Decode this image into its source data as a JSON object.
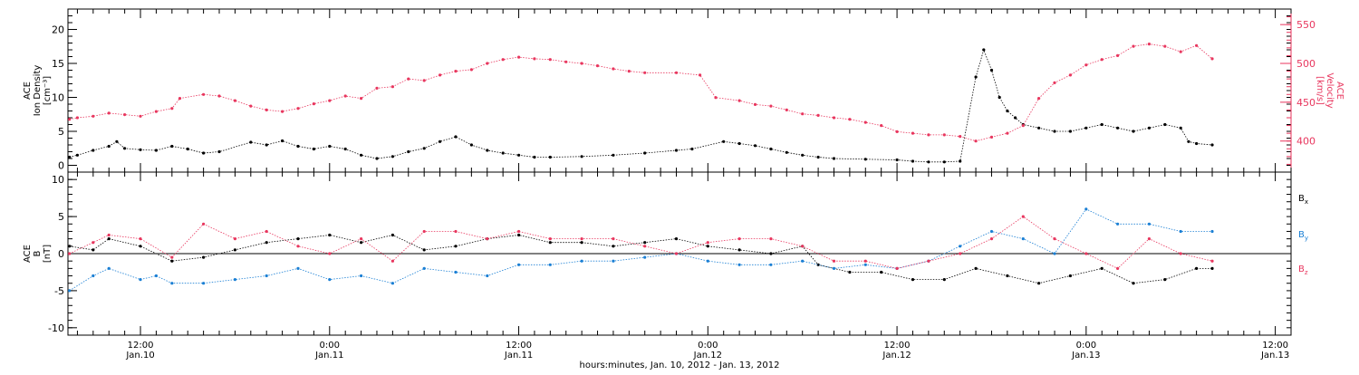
{
  "title": "",
  "x_axis": {
    "label": "hours:minutes, Jan. 10, 2012 - Jan. 13, 2012",
    "ticks": [
      {
        "hours": 12,
        "time": "12:00",
        "date": "Jan.10"
      },
      {
        "hours": 24,
        "time": "0:00",
        "date": "Jan.11"
      },
      {
        "hours": 36,
        "time": "12:00",
        "date": "Jan.11"
      },
      {
        "hours": 48,
        "time": "0:00",
        "date": "Jan.12"
      },
      {
        "hours": 60,
        "time": "12:00",
        "date": "Jan.12"
      },
      {
        "hours": 72,
        "time": "0:00",
        "date": "Jan.13"
      },
      {
        "hours": 84,
        "time": "12:00",
        "date": "Jan.13"
      }
    ]
  },
  "chart_data": [
    {
      "type": "scatter",
      "panel": "top",
      "x_unit": "hours since Jan 10 2012 00:00",
      "xlim": [
        7.4,
        85
      ],
      "left_axis": {
        "label_lines": [
          "ACE",
          "Ion Density",
          "[cm⁻³]"
        ],
        "ylim": [
          -1,
          23
        ],
        "ticks": [
          0,
          5,
          10,
          15,
          20
        ]
      },
      "right_axis": {
        "label_lines": [
          "ACE",
          "Velocity",
          "[km/s]"
        ],
        "ylim": [
          360,
          570
        ],
        "ticks": [
          400,
          450,
          500,
          550
        ],
        "color": "#e8365e"
      },
      "series": [
        {
          "name": "",
          "axis": "left",
          "color": "#000000",
          "points": [
            [
              7.5,
              1.2
            ],
            [
              8,
              1.5
            ],
            [
              9,
              2.2
            ],
            [
              10,
              2.8
            ],
            [
              10.5,
              3.5
            ],
            [
              11,
              2.5
            ],
            [
              12,
              2.3
            ],
            [
              13,
              2.2
            ],
            [
              14,
              2.8
            ],
            [
              15,
              2.4
            ],
            [
              16,
              1.8
            ],
            [
              17,
              2.0
            ],
            [
              19,
              3.4
            ],
            [
              20,
              3.0
            ],
            [
              21,
              3.6
            ],
            [
              22,
              2.8
            ],
            [
              23,
              2.4
            ],
            [
              24,
              2.8
            ],
            [
              25,
              2.4
            ],
            [
              26,
              1.5
            ],
            [
              27,
              1.0
            ],
            [
              28,
              1.3
            ],
            [
              29,
              2.0
            ],
            [
              30,
              2.5
            ],
            [
              31,
              3.5
            ],
            [
              32,
              4.2
            ],
            [
              33,
              3.0
            ],
            [
              34,
              2.2
            ],
            [
              35,
              1.8
            ],
            [
              36,
              1.5
            ],
            [
              37,
              1.2
            ],
            [
              38,
              1.2
            ],
            [
              40,
              1.3
            ],
            [
              42,
              1.5
            ],
            [
              44,
              1.8
            ],
            [
              46,
              2.2
            ],
            [
              47,
              2.4
            ],
            [
              49,
              3.5
            ],
            [
              50,
              3.2
            ],
            [
              51,
              2.9
            ],
            [
              52,
              2.4
            ],
            [
              53,
              1.9
            ],
            [
              54,
              1.5
            ],
            [
              55,
              1.2
            ],
            [
              56,
              1.0
            ],
            [
              58,
              0.9
            ],
            [
              60,
              0.8
            ],
            [
              61,
              0.6
            ],
            [
              62,
              0.5
            ],
            [
              63,
              0.5
            ],
            [
              64,
              0.6
            ],
            [
              65,
              13
            ],
            [
              65.5,
              17
            ],
            [
              66,
              14
            ],
            [
              66.5,
              10
            ],
            [
              67,
              8
            ],
            [
              67.5,
              7
            ],
            [
              68,
              6
            ],
            [
              69,
              5.5
            ],
            [
              70,
              5
            ],
            [
              71,
              5
            ],
            [
              72,
              5.5
            ],
            [
              73,
              6
            ],
            [
              74,
              5.5
            ],
            [
              75,
              5
            ],
            [
              76,
              5.5
            ],
            [
              77,
              6
            ],
            [
              78,
              5.5
            ],
            [
              78.5,
              3.5
            ],
            [
              79,
              3.2
            ],
            [
              80,
              3
            ]
          ]
        },
        {
          "name": "",
          "axis": "right",
          "color": "#e8365e",
          "points": [
            [
              7.5,
              428
            ],
            [
              8,
              430
            ],
            [
              9,
              432
            ],
            [
              10,
              436
            ],
            [
              11,
              434
            ],
            [
              12,
              432
            ],
            [
              13,
              438
            ],
            [
              14,
              442
            ],
            [
              14.5,
              455
            ],
            [
              16,
              460
            ],
            [
              17,
              458
            ],
            [
              18,
              452
            ],
            [
              19,
              445
            ],
            [
              20,
              440
            ],
            [
              21,
              438
            ],
            [
              22,
              442
            ],
            [
              23,
              448
            ],
            [
              24,
              452
            ],
            [
              25,
              458
            ],
            [
              26,
              455
            ],
            [
              27,
              468
            ],
            [
              28,
              470
            ],
            [
              29,
              480
            ],
            [
              30,
              478
            ],
            [
              31,
              485
            ],
            [
              32,
              490
            ],
            [
              33,
              492
            ],
            [
              34,
              500
            ],
            [
              35,
              505
            ],
            [
              36,
              508
            ],
            [
              37,
              506
            ],
            [
              38,
              505
            ],
            [
              39,
              502
            ],
            [
              40,
              500
            ],
            [
              41,
              497
            ],
            [
              42,
              493
            ],
            [
              43,
              490
            ],
            [
              44,
              488
            ],
            [
              46,
              488
            ],
            [
              47.5,
              485
            ],
            [
              48.5,
              456
            ],
            [
              50,
              452
            ],
            [
              51,
              447
            ],
            [
              52,
              445
            ],
            [
              53,
              440
            ],
            [
              54,
              435
            ],
            [
              55,
              433
            ],
            [
              56,
              430
            ],
            [
              57,
              428
            ],
            [
              58,
              424
            ],
            [
              59,
              420
            ],
            [
              60,
              412
            ],
            [
              61,
              410
            ],
            [
              62,
              408
            ],
            [
              63,
              408
            ],
            [
              64,
              406
            ],
            [
              65,
              400
            ],
            [
              66,
              405
            ],
            [
              67,
              410
            ],
            [
              68,
              420
            ],
            [
              69,
              455
            ],
            [
              70,
              475
            ],
            [
              71,
              485
            ],
            [
              72,
              498
            ],
            [
              73,
              505
            ],
            [
              74,
              510
            ],
            [
              75,
              522
            ],
            [
              76,
              525
            ],
            [
              77,
              522
            ],
            [
              78,
              515
            ],
            [
              79,
              523
            ],
            [
              80,
              506
            ]
          ]
        }
      ]
    },
    {
      "type": "scatter",
      "panel": "bottom",
      "x_unit": "hours since Jan 10 2012 00:00",
      "xlim": [
        7.4,
        85
      ],
      "left_axis": {
        "label_lines": [
          "ACE",
          "B",
          "[nT]"
        ],
        "ylim": [
          -11,
          11
        ],
        "ticks": [
          -10,
          -5,
          0,
          5,
          10
        ]
      },
      "series": [
        {
          "name": "Bx",
          "color": "#000000",
          "points": [
            [
              7.5,
              1
            ],
            [
              9,
              0.5
            ],
            [
              10,
              2
            ],
            [
              12,
              1
            ],
            [
              14,
              -1
            ],
            [
              16,
              -0.5
            ],
            [
              18,
              0.5
            ],
            [
              20,
              1.5
            ],
            [
              22,
              2
            ],
            [
              24,
              2.5
            ],
            [
              26,
              1.5
            ],
            [
              28,
              2.5
            ],
            [
              30,
              0.5
            ],
            [
              32,
              1
            ],
            [
              34,
              2
            ],
            [
              36,
              2.5
            ],
            [
              38,
              1.5
            ],
            [
              40,
              1.5
            ],
            [
              42,
              1
            ],
            [
              44,
              1.5
            ],
            [
              46,
              2
            ],
            [
              48,
              1
            ],
            [
              50,
              0.5
            ],
            [
              52,
              0
            ],
            [
              54,
              1
            ],
            [
              55,
              -1.5
            ],
            [
              57,
              -2.5
            ],
            [
              59,
              -2.5
            ],
            [
              61,
              -3.5
            ],
            [
              63,
              -3.5
            ],
            [
              65,
              -2
            ],
            [
              67,
              -3
            ],
            [
              69,
              -4
            ],
            [
              71,
              -3
            ],
            [
              73,
              -2
            ],
            [
              75,
              -4
            ],
            [
              77,
              -3.5
            ],
            [
              79,
              -2
            ],
            [
              80,
              -2
            ]
          ]
        },
        {
          "name": "By",
          "color": "#1a7fd4",
          "points": [
            [
              7.5,
              -5
            ],
            [
              9,
              -3
            ],
            [
              10,
              -2
            ],
            [
              12,
              -3.5
            ],
            [
              13,
              -3
            ],
            [
              14,
              -4
            ],
            [
              16,
              -4
            ],
            [
              18,
              -3.5
            ],
            [
              20,
              -3
            ],
            [
              22,
              -2
            ],
            [
              24,
              -3.5
            ],
            [
              26,
              -3
            ],
            [
              28,
              -4
            ],
            [
              30,
              -2
            ],
            [
              32,
              -2.5
            ],
            [
              34,
              -3
            ],
            [
              36,
              -1.5
            ],
            [
              38,
              -1.5
            ],
            [
              40,
              -1
            ],
            [
              42,
              -1
            ],
            [
              44,
              -0.5
            ],
            [
              46,
              0
            ],
            [
              48,
              -1
            ],
            [
              50,
              -1.5
            ],
            [
              52,
              -1.5
            ],
            [
              54,
              -1
            ],
            [
              56,
              -2
            ],
            [
              58,
              -1.5
            ],
            [
              60,
              -2
            ],
            [
              62,
              -1
            ],
            [
              64,
              1
            ],
            [
              66,
              3
            ],
            [
              68,
              2
            ],
            [
              70,
              0
            ],
            [
              72,
              6
            ],
            [
              74,
              4
            ],
            [
              76,
              4
            ],
            [
              78,
              3
            ],
            [
              80,
              3
            ]
          ]
        },
        {
          "name": "Bz",
          "color": "#e8365e",
          "points": [
            [
              7.5,
              0
            ],
            [
              9,
              1.5
            ],
            [
              10,
              2.5
            ],
            [
              12,
              2
            ],
            [
              14,
              -0.5
            ],
            [
              16,
              4
            ],
            [
              18,
              2
            ],
            [
              20,
              3
            ],
            [
              22,
              1
            ],
            [
              24,
              0
            ],
            [
              26,
              2
            ],
            [
              28,
              -1
            ],
            [
              30,
              3
            ],
            [
              32,
              3
            ],
            [
              34,
              2
            ],
            [
              36,
              3
            ],
            [
              38,
              2
            ],
            [
              40,
              2
            ],
            [
              42,
              2
            ],
            [
              44,
              1
            ],
            [
              46,
              0
            ],
            [
              48,
              1.5
            ],
            [
              50,
              2
            ],
            [
              52,
              2
            ],
            [
              54,
              1
            ],
            [
              56,
              -1
            ],
            [
              58,
              -1
            ],
            [
              60,
              -2
            ],
            [
              62,
              -1
            ],
            [
              64,
              0
            ],
            [
              66,
              2
            ],
            [
              68,
              5
            ],
            [
              70,
              2
            ],
            [
              72,
              0
            ],
            [
              74,
              -2
            ],
            [
              76,
              2
            ],
            [
              78,
              0
            ],
            [
              80,
              -1
            ]
          ]
        }
      ]
    }
  ],
  "legend": [
    {
      "label": "B",
      "sub": "x",
      "color": "#000000"
    },
    {
      "label": "B",
      "sub": "y",
      "color": "#1a7fd4"
    },
    {
      "label": "B",
      "sub": "z",
      "color": "#e8365e"
    }
  ]
}
